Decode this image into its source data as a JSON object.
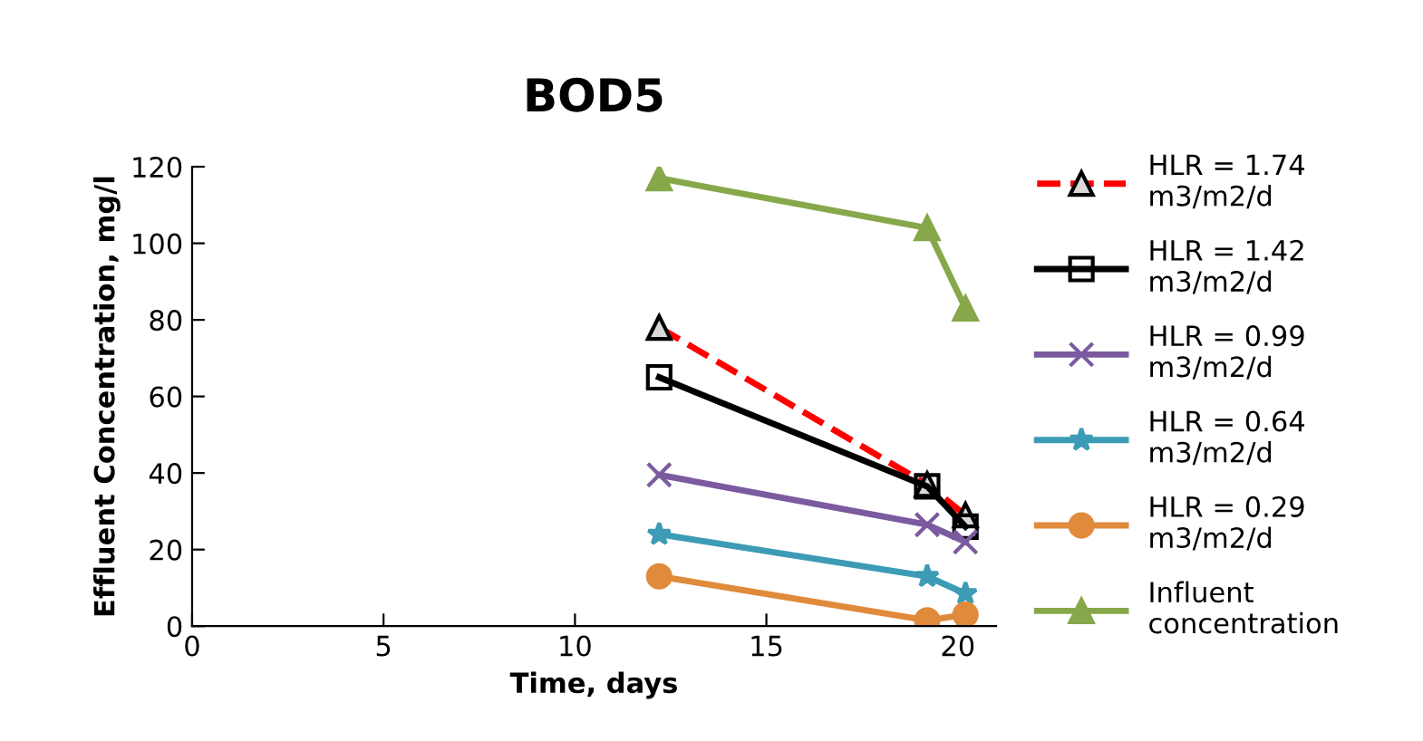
{
  "chart_data": {
    "type": "line",
    "title": "BOD5",
    "xlabel": "Time, days",
    "ylabel": "Effluent Concentration, mg/l",
    "xlim": [
      0,
      21
    ],
    "xticks": [
      0,
      5,
      10,
      15,
      20
    ],
    "ylim": [
      0,
      120
    ],
    "yticks": [
      0,
      20,
      40,
      60,
      80,
      100,
      120
    ],
    "grid": false,
    "legend": "right",
    "series": [
      {
        "name": "HLR = 1.74\nm3/m2/d",
        "color": "#ff0000",
        "line_style": "dashed",
        "marker": "triangle",
        "x": [
          12.2,
          19.2,
          20.2
        ],
        "values": [
          78,
          37,
          29
        ]
      },
      {
        "name": "HLR = 1.42\nm3/m2/d",
        "color": "#000000",
        "line_style": "solid",
        "marker": "square",
        "x": [
          12.2,
          19.2,
          20.2
        ],
        "values": [
          65,
          36.5,
          26
        ]
      },
      {
        "name": "HLR = 0.99\nm3/m2/d",
        "color": "#7b5aa0",
        "line_style": "solid",
        "marker": "cross",
        "x": [
          12.2,
          19.2,
          20.2
        ],
        "values": [
          39.5,
          26.5,
          22
        ]
      },
      {
        "name": "HLR = 0.64\nm3/m2/d",
        "color": "#3d9bb5",
        "line_style": "solid",
        "marker": "star",
        "x": [
          12.2,
          19.2,
          20.2
        ],
        "values": [
          24,
          13,
          8.5
        ]
      },
      {
        "name": "HLR = 0.29\nm3/m2/d",
        "color": "#e08a3c",
        "line_style": "solid",
        "marker": "circle",
        "x": [
          12.2,
          19.2,
          20.2
        ],
        "values": [
          13,
          1.5,
          3
        ]
      },
      {
        "name": "Influent\nconcentration",
        "color": "#86a84a",
        "line_style": "solid",
        "marker": "triangle",
        "x": [
          12.2,
          19.2,
          20.2
        ],
        "values": [
          117,
          104,
          83
        ]
      }
    ]
  }
}
